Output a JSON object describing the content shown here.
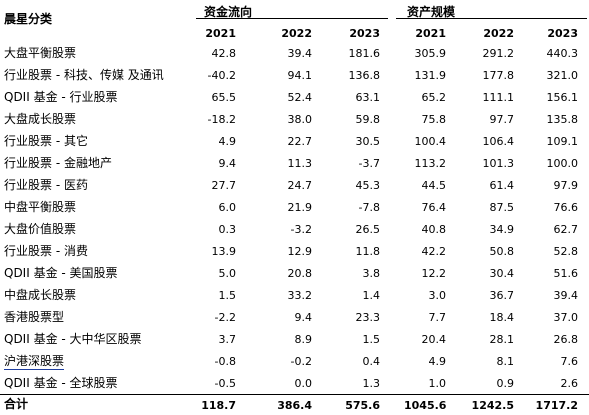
{
  "header": {
    "category_title": "晨星分类",
    "group_flow": "资金流向",
    "group_scale": "资产规模",
    "years": [
      "2021",
      "2022",
      "2023",
      "2021",
      "2022",
      "2023"
    ]
  },
  "rows": [
    {
      "category": "大盘平衡股票",
      "values": [
        "42.8",
        "39.4",
        "181.6",
        "305.9",
        "291.2",
        "440.3"
      ]
    },
    {
      "category": "行业股票 - 科技、传媒 及通讯",
      "values": [
        "-40.2",
        "94.1",
        "136.8",
        "131.9",
        "177.8",
        "321.0"
      ]
    },
    {
      "category": "QDII 基金 - 行业股票",
      "values": [
        "65.5",
        "52.4",
        "63.1",
        "65.2",
        "111.1",
        "156.1"
      ]
    },
    {
      "category": "大盘成长股票",
      "values": [
        "-18.2",
        "38.0",
        "59.8",
        "75.8",
        "97.7",
        "135.8"
      ]
    },
    {
      "category": "行业股票 - 其它",
      "values": [
        "4.9",
        "22.7",
        "30.5",
        "100.4",
        "106.4",
        "109.1"
      ]
    },
    {
      "category": "行业股票 - 金融地产",
      "values": [
        "9.4",
        "11.3",
        "-3.7",
        "113.2",
        "101.3",
        "100.0"
      ]
    },
    {
      "category": "行业股票 - 医药",
      "values": [
        "27.7",
        "24.7",
        "45.3",
        "44.5",
        "61.4",
        "97.9"
      ]
    },
    {
      "category": "中盘平衡股票",
      "values": [
        "6.0",
        "21.9",
        "-7.8",
        "76.4",
        "87.5",
        "76.6"
      ]
    },
    {
      "category": "大盘价值股票",
      "values": [
        "0.3",
        "-3.2",
        "26.5",
        "40.8",
        "34.9",
        "62.7"
      ]
    },
    {
      "category": "行业股票 - 消费",
      "values": [
        "13.9",
        "12.9",
        "11.8",
        "42.2",
        "50.8",
        "52.8"
      ]
    },
    {
      "category": "QDII 基金 - 美国股票",
      "values": [
        "5.0",
        "20.8",
        "3.8",
        "12.2",
        "30.4",
        "51.6"
      ]
    },
    {
      "category": "中盘成长股票",
      "values": [
        "1.5",
        "33.2",
        "1.4",
        "3.0",
        "36.7",
        "39.4"
      ]
    },
    {
      "category": "香港股票型",
      "values": [
        "-2.2",
        "9.4",
        "23.3",
        "7.7",
        "18.4",
        "37.0"
      ]
    },
    {
      "category": "QDII 基金 - 大中华区股票",
      "values": [
        "3.7",
        "8.9",
        "1.5",
        "20.4",
        "28.1",
        "26.8"
      ]
    },
    {
      "category": "沪港深股票",
      "values": [
        "-0.8",
        "-0.2",
        "0.4",
        "4.9",
        "8.1",
        "7.6"
      ]
    },
    {
      "category": "QDII 基金 - 全球股票",
      "values": [
        "-0.5",
        "0.0",
        "1.3",
        "1.0",
        "0.9",
        "2.6"
      ]
    }
  ],
  "total": {
    "label": "合计",
    "values": [
      "118.7",
      "386.4",
      "575.6",
      "1045.6",
      "1242.5",
      "1717.2"
    ]
  }
}
